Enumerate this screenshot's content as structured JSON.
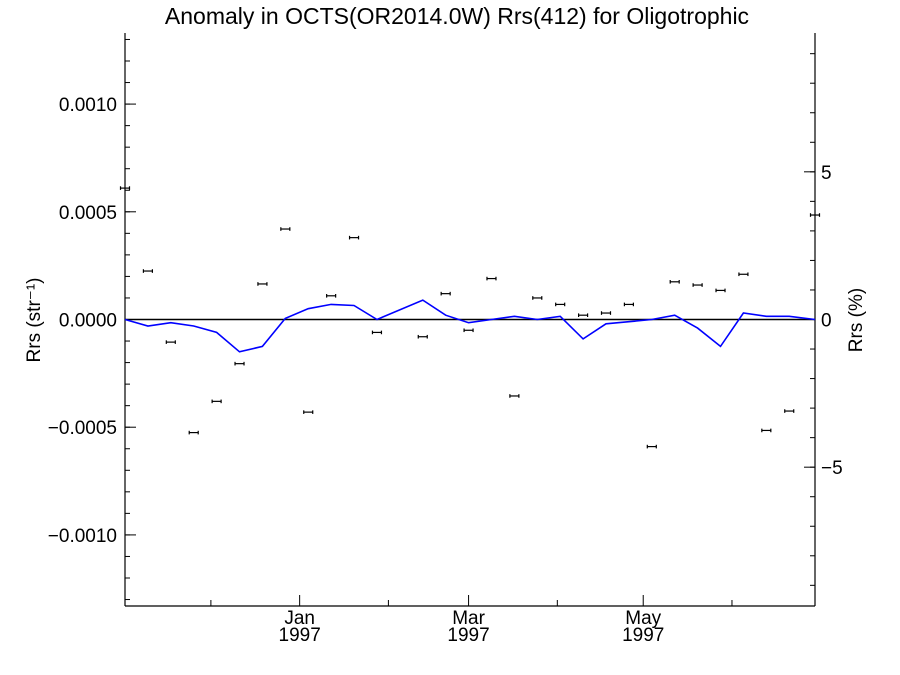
{
  "chart_data": {
    "type": "scatter",
    "title": "Anomaly in OCTS(OR2014.0W) Rrs(412) for Oligotrophic",
    "ylabel": "Rrs (str⁻¹)",
    "ylabel_right": "Rrs (%)",
    "xlabel": "",
    "xlim": [
      "1996-11-01",
      "1997-06-30"
    ],
    "ylim": [
      -0.00133,
      0.00133
    ],
    "ylim_right": [
      -9.7,
      9.7
    ],
    "yticks": [
      0.001,
      0.0005,
      0.0,
      -0.0005,
      -0.001
    ],
    "ytick_labels": [
      "0.0010",
      "0.0005",
      "0.0000",
      "−0.0005",
      "−0.0010"
    ],
    "yticks_right": [
      5,
      0,
      -5
    ],
    "ytick_labels_right": [
      "5",
      "0",
      "−5"
    ],
    "xticks": [
      {
        "date": "1997-01-01",
        "label1": "Jan",
        "label2": "1997"
      },
      {
        "date": "1997-03-01",
        "label1": "Mar",
        "label2": "1997"
      },
      {
        "date": "1997-05-01",
        "label1": "May",
        "label2": "1997"
      }
    ],
    "x_minor_ticks": [
      "1996-12-01",
      "1997-02-01",
      "1997-04-01",
      "1997-06-01"
    ],
    "grid": false,
    "series": [
      {
        "kind": "points-with-errorbars",
        "axis": "left",
        "color": "#000000",
        "points": [
          {
            "x": "1996-11-01",
            "y": 0.00061
          },
          {
            "x": "1996-11-09",
            "y": 0.000225
          },
          {
            "x": "1996-11-17",
            "y": -0.000105
          },
          {
            "x": "1996-11-25",
            "y": -0.000525
          },
          {
            "x": "1996-12-03",
            "y": -0.00038
          },
          {
            "x": "1996-12-11",
            "y": -0.000205
          },
          {
            "x": "1996-12-19",
            "y": 0.000165
          },
          {
            "x": "1996-12-27",
            "y": 0.00042
          },
          {
            "x": "1997-01-04",
            "y": -0.00043
          },
          {
            "x": "1997-01-12",
            "y": 0.00011
          },
          {
            "x": "1997-01-20",
            "y": 0.00038
          },
          {
            "x": "1997-01-28",
            "y": -6e-05
          },
          {
            "x": "1997-02-13",
            "y": -8e-05
          },
          {
            "x": "1997-02-21",
            "y": 0.00012
          },
          {
            "x": "1997-03-01",
            "y": -5e-05
          },
          {
            "x": "1997-03-09",
            "y": 0.00019
          },
          {
            "x": "1997-03-17",
            "y": -0.000355
          },
          {
            "x": "1997-03-25",
            "y": 0.0001
          },
          {
            "x": "1997-04-02",
            "y": 7e-05
          },
          {
            "x": "1997-04-10",
            "y": 2e-05
          },
          {
            "x": "1997-04-18",
            "y": 3e-05
          },
          {
            "x": "1997-04-26",
            "y": 7e-05
          },
          {
            "x": "1997-05-04",
            "y": -0.00059
          },
          {
            "x": "1997-05-12",
            "y": 0.000175
          },
          {
            "x": "1997-05-20",
            "y": 0.00016
          },
          {
            "x": "1997-05-28",
            "y": 0.000135
          },
          {
            "x": "1997-06-05",
            "y": 0.00021
          },
          {
            "x": "1997-06-13",
            "y": -0.000515
          },
          {
            "x": "1997-06-21",
            "y": -0.000425
          },
          {
            "x": "1997-06-30",
            "y": 0.000485
          }
        ]
      },
      {
        "kind": "line",
        "axis": "left",
        "color": "#0000ff",
        "points": [
          {
            "x": "1996-11-01",
            "y": 0.0
          },
          {
            "x": "1996-11-09",
            "y": -3e-05
          },
          {
            "x": "1996-11-17",
            "y": -1.5e-05
          },
          {
            "x": "1996-11-25",
            "y": -3e-05
          },
          {
            "x": "1996-12-03",
            "y": -6e-05
          },
          {
            "x": "1996-12-11",
            "y": -0.00015
          },
          {
            "x": "1996-12-19",
            "y": -0.000125
          },
          {
            "x": "1996-12-27",
            "y": 5e-06
          },
          {
            "x": "1997-01-04",
            "y": 5e-05
          },
          {
            "x": "1997-01-12",
            "y": 7e-05
          },
          {
            "x": "1997-01-20",
            "y": 6.5e-05
          },
          {
            "x": "1997-01-28",
            "y": 0.0
          },
          {
            "x": "1997-02-13",
            "y": 9e-05
          },
          {
            "x": "1997-02-21",
            "y": 2e-05
          },
          {
            "x": "1997-03-01",
            "y": -1.5e-05
          },
          {
            "x": "1997-03-09",
            "y": 0.0
          },
          {
            "x": "1997-03-17",
            "y": 1.5e-05
          },
          {
            "x": "1997-03-25",
            "y": 0.0
          },
          {
            "x": "1997-04-02",
            "y": 1.5e-05
          },
          {
            "x": "1997-04-10",
            "y": -9e-05
          },
          {
            "x": "1997-04-18",
            "y": -2e-05
          },
          {
            "x": "1997-04-26",
            "y": -1e-05
          },
          {
            "x": "1997-05-04",
            "y": 0.0
          },
          {
            "x": "1997-05-12",
            "y": 2e-05
          },
          {
            "x": "1997-05-20",
            "y": -4e-05
          },
          {
            "x": "1997-05-28",
            "y": -0.000125
          },
          {
            "x": "1997-06-05",
            "y": 3e-05
          },
          {
            "x": "1997-06-13",
            "y": 1.5e-05
          },
          {
            "x": "1997-06-21",
            "y": 1.5e-05
          },
          {
            "x": "1997-06-30",
            "y": 0.0
          }
        ]
      }
    ]
  }
}
